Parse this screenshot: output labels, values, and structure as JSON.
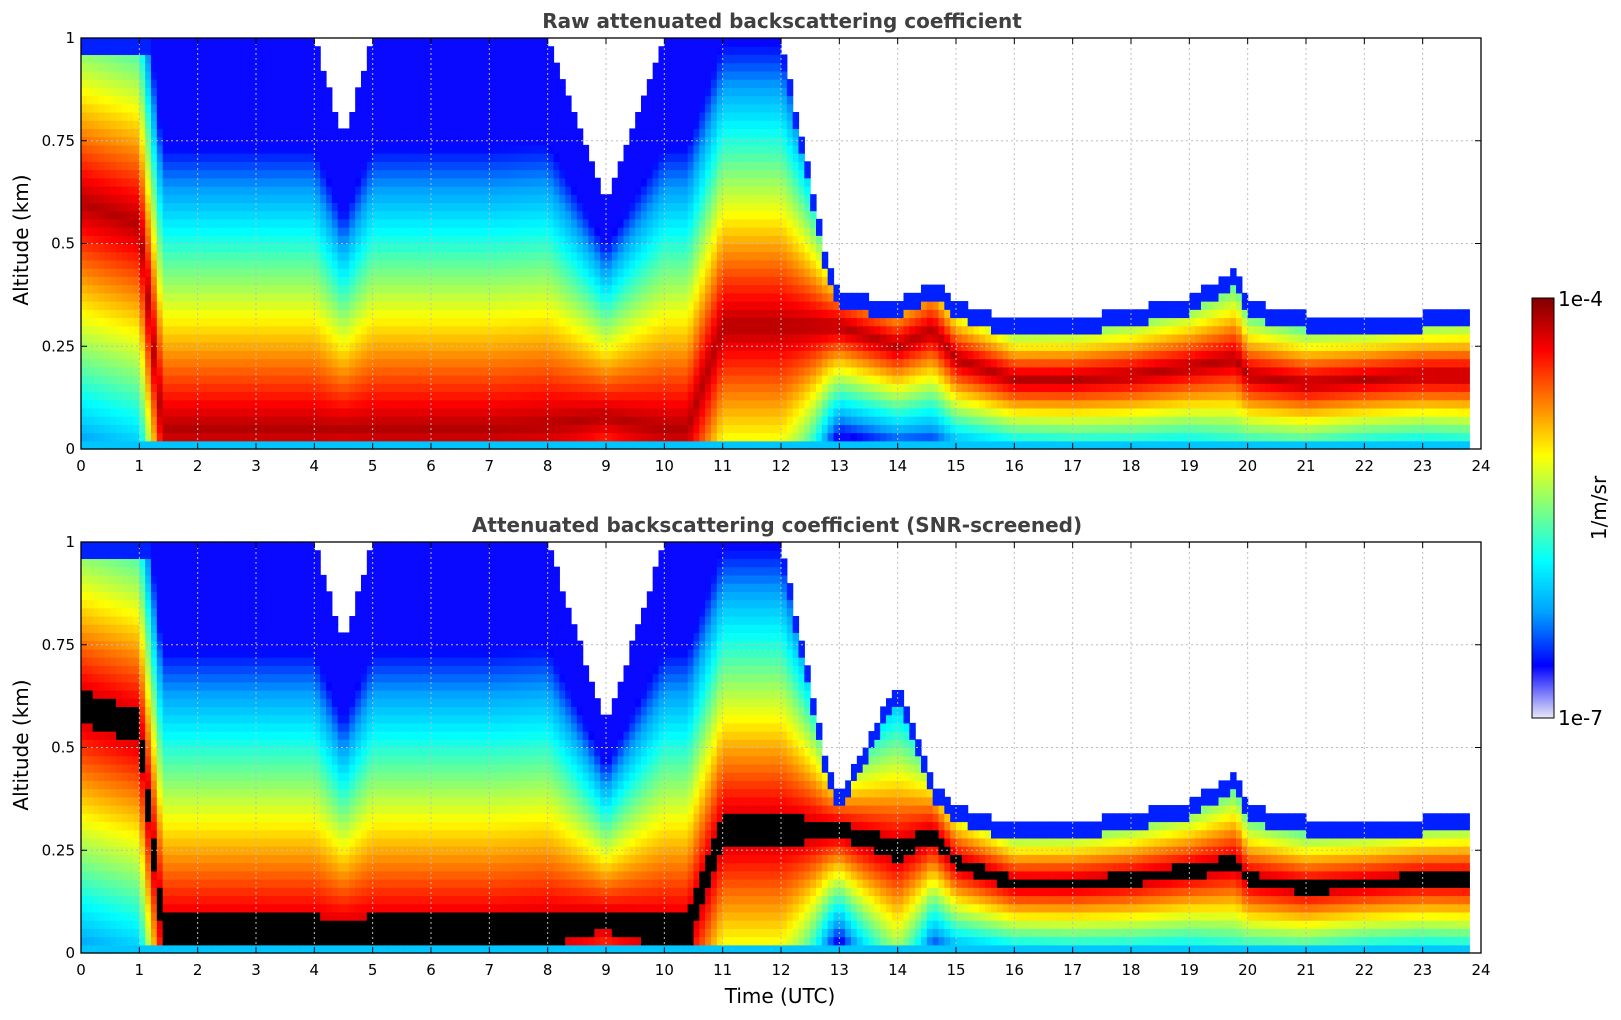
{
  "chart_data": [
    {
      "type": "heatmap",
      "title": "Raw attenuated backscattering coefficient",
      "xlabel": "",
      "ylabel": "Altitude (km)",
      "xlim": [
        0,
        24
      ],
      "ylim": [
        0,
        1
      ],
      "xticks": [
        "0",
        "1",
        "2",
        "3",
        "4",
        "5",
        "6",
        "7",
        "8",
        "9",
        "10",
        "11",
        "12",
        "13",
        "14",
        "15",
        "16",
        "17",
        "18",
        "19",
        "20",
        "21",
        "22",
        "23",
        "24"
      ],
      "yticks": [
        "0",
        "0.25",
        "0.5",
        "0.75",
        "1"
      ],
      "grid": true,
      "screened": false,
      "profile": {
        "time_utc": [
          0,
          1,
          1.4,
          2,
          3,
          4,
          4.5,
          5,
          6,
          7,
          8,
          9,
          10,
          10.4,
          11,
          12,
          12.8,
          13,
          14,
          14.6,
          15,
          16,
          17,
          18,
          19,
          19.8,
          20,
          21,
          22,
          23,
          23.8
        ],
        "top_km": [
          1,
          1,
          1,
          1,
          1,
          1,
          0.75,
          1,
          1,
          1,
          1,
          0.6,
          1,
          1,
          1,
          1,
          0.45,
          0.38,
          0.36,
          0.41,
          0.36,
          0.31,
          0.32,
          0.34,
          0.37,
          0.44,
          0.36,
          0.33,
          0.32,
          0.33,
          0.34
        ],
        "peak_km": [
          0.6,
          0.55,
          0.05,
          0.05,
          0.05,
          0.05,
          0.05,
          0.05,
          0.05,
          0.05,
          0.06,
          0.08,
          0.05,
          0.05,
          0.3,
          0.3,
          0.3,
          0.3,
          0.25,
          0.29,
          0.22,
          0.17,
          0.17,
          0.18,
          0.2,
          0.22,
          0.18,
          0.16,
          0.17,
          0.18,
          0.18
        ]
      }
    },
    {
      "type": "heatmap",
      "title": "Attenuated backscattering coefficient (SNR-screened)",
      "xlabel": "Time (UTC)",
      "ylabel": "Altitude (km)",
      "xlim": [
        0,
        24
      ],
      "ylim": [
        0,
        1
      ],
      "xticks": [
        "0",
        "1",
        "2",
        "3",
        "4",
        "5",
        "6",
        "7",
        "8",
        "9",
        "10",
        "11",
        "12",
        "13",
        "14",
        "15",
        "16",
        "17",
        "18",
        "19",
        "20",
        "21",
        "22",
        "23",
        "24"
      ],
      "yticks": [
        "0",
        "0.25",
        "0.5",
        "0.75",
        "1"
      ],
      "grid": true,
      "screened": true,
      "saturation_color": "#000000",
      "profile": {
        "time_utc": [
          0,
          1,
          1.4,
          2,
          3,
          4,
          4.5,
          5,
          6,
          7,
          8,
          9,
          10,
          10.4,
          11,
          12,
          12.8,
          13,
          14,
          14.6,
          15,
          16,
          17,
          18,
          19,
          19.8,
          20,
          21,
          22,
          23,
          23.8
        ],
        "top_km": [
          1,
          1,
          1,
          1,
          1,
          1,
          0.75,
          1,
          1,
          1,
          1,
          0.55,
          1,
          1,
          1,
          1,
          0.45,
          0.38,
          0.66,
          0.41,
          0.36,
          0.31,
          0.32,
          0.34,
          0.37,
          0.44,
          0.36,
          0.33,
          0.32,
          0.33,
          0.34
        ],
        "peak_km": [
          0.6,
          0.55,
          0.05,
          0.05,
          0.05,
          0.05,
          0.05,
          0.05,
          0.05,
          0.05,
          0.06,
          0.08,
          0.05,
          0.05,
          0.3,
          0.3,
          0.3,
          0.3,
          0.25,
          0.29,
          0.22,
          0.17,
          0.17,
          0.18,
          0.2,
          0.22,
          0.18,
          0.16,
          0.17,
          0.18,
          0.18
        ]
      }
    }
  ],
  "colorbar": {
    "label": "1/m/sr",
    "max_label": "1e-4",
    "min_label": "1e-7",
    "scale": "log",
    "range": [
      1e-07,
      0.0001
    ],
    "colormap": "jet",
    "colors": [
      "#e8e8f8",
      "#0000ff",
      "#00a0ff",
      "#00ffff",
      "#7fff7f",
      "#ffff00",
      "#ff8000",
      "#ff0000",
      "#800000"
    ]
  }
}
